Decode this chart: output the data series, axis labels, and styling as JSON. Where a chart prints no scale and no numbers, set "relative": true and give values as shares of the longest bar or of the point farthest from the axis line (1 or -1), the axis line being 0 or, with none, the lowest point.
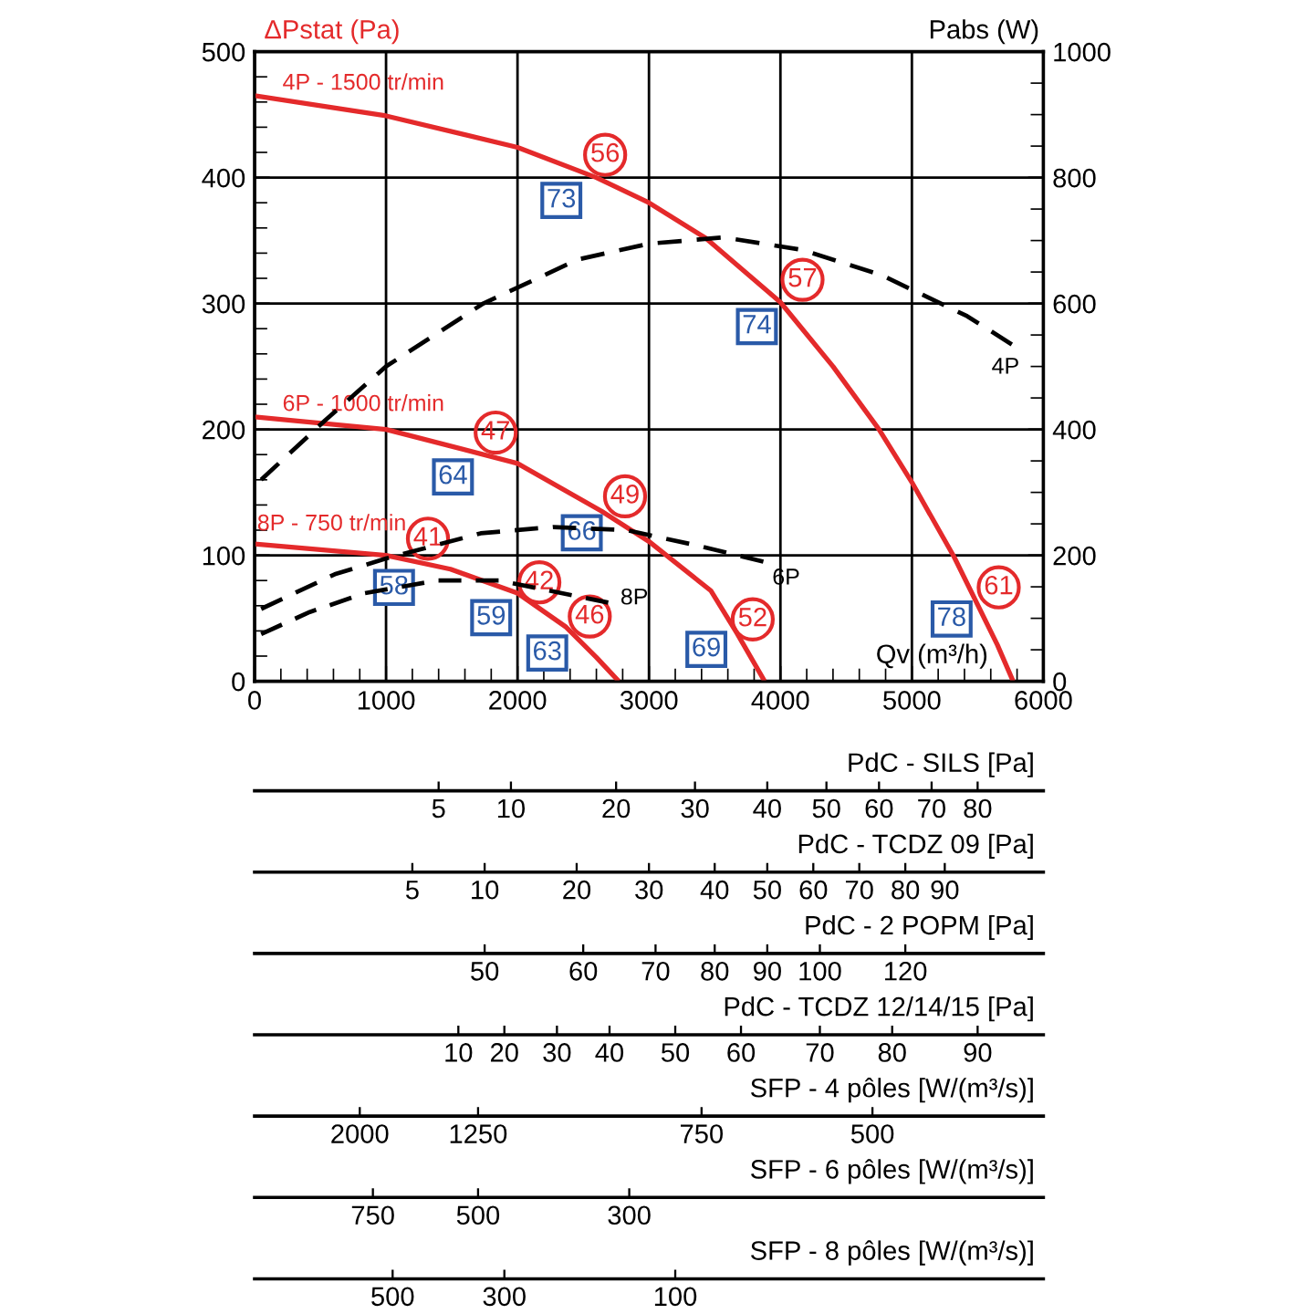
{
  "chart_data": [
    {
      "type": "line",
      "xlabel": "Qv (m³/h)",
      "ylabel": "ΔPstat (Pa)",
      "y2label": "Pabs (W)",
      "xlim": [
        0,
        6000
      ],
      "xticks": [
        0,
        {
          "value": 200,
          "label": null
        },
        {
          "value": 400,
          "label": null
        },
        {
          "value": 600,
          "label": null
        },
        {
          "value": 800,
          "label": null
        },
        1000,
        {
          "value": 1200,
          "label": null
        },
        {
          "value": 1400,
          "label": null
        },
        {
          "value": 1600,
          "label": null
        },
        {
          "value": 1800,
          "label": null
        },
        2000,
        {
          "value": 2200,
          "label": null
        },
        {
          "value": 2400,
          "label": null
        },
        {
          "value": 2600,
          "label": null
        },
        {
          "value": 2800,
          "label": null
        },
        3000,
        {
          "value": 3200,
          "label": null
        },
        {
          "value": 3400,
          "label": null
        },
        {
          "value": 3600,
          "label": null
        },
        {
          "value": 3800,
          "label": null
        },
        4000,
        {
          "value": 4200,
          "label": null
        },
        {
          "value": 4400,
          "label": null
        },
        {
          "value": 4600,
          "label": null
        },
        {
          "value": 4800,
          "label": null
        },
        5000,
        {
          "value": 5200,
          "label": null
        },
        {
          "value": 5400,
          "label": null
        },
        {
          "value": 5600,
          "label": null
        },
        {
          "value": 5800,
          "label": null
        },
        6000
      ],
      "ylim": [
        0,
        500
      ],
      "yticks": [
        0,
        {
          "value": 20,
          "label": null
        },
        {
          "value": 40,
          "label": null
        },
        {
          "value": 60,
          "label": null
        },
        {
          "value": 80,
          "label": null
        },
        100,
        {
          "value": 120,
          "label": null
        },
        {
          "value": 140,
          "label": null
        },
        {
          "value": 160,
          "label": null
        },
        {
          "value": 180,
          "label": null
        },
        200,
        {
          "value": 220,
          "label": null
        },
        {
          "value": 240,
          "label": null
        },
        {
          "value": 260,
          "label": null
        },
        {
          "value": 280,
          "label": null
        },
        300,
        {
          "value": 320,
          "label": null
        },
        {
          "value": 340,
          "label": null
        },
        {
          "value": 360,
          "label": null
        },
        {
          "value": 380,
          "label": null
        },
        400,
        {
          "value": 420,
          "label": null
        },
        {
          "value": 440,
          "label": null
        },
        {
          "value": 460,
          "label": null
        },
        {
          "value": 480,
          "label": null
        },
        500
      ],
      "y2lim": [
        0,
        1000
      ],
      "y2ticks": [
        0,
        {
          "value": 50,
          "label": null
        },
        {
          "value": 100,
          "label": null
        },
        {
          "value": 150,
          "label": null
        },
        200,
        {
          "value": 250,
          "label": null
        },
        {
          "value": 300,
          "label": null
        },
        {
          "value": 350,
          "label": null
        },
        400,
        {
          "value": 450,
          "label": null
        },
        {
          "value": 500,
          "label": null
        },
        {
          "value": 550,
          "label": null
        },
        600,
        {
          "value": 650,
          "label": null
        },
        {
          "value": 700,
          "label": null
        },
        {
          "value": 750,
          "label": null
        },
        800,
        {
          "value": 850,
          "label": null
        },
        {
          "value": 900,
          "label": null
        },
        {
          "value": 950,
          "label": null
        },
        1000
      ],
      "grid": true,
      "series": [
        {
          "name": "4P - 1500 tr/min",
          "color": "#e42a2b",
          "line_style": "solid",
          "x": [
            0,
            1000,
            2000,
            2600,
            3000,
            3430,
            4000,
            4400,
            4750,
            5000,
            5320,
            5650,
            5770
          ],
          "values": [
            465,
            449,
            424,
            400,
            380,
            352,
            301,
            250,
            200,
            158,
            99,
            29,
            0
          ]
        },
        {
          "name": "6P - 1000 tr/min",
          "color": "#e42a2b",
          "line_style": "solid",
          "x": [
            0,
            1000,
            2000,
            2640,
            3000,
            3470,
            3670,
            3880
          ],
          "values": [
            210,
            200,
            173,
            135,
            111,
            72,
            38,
            0
          ]
        },
        {
          "name": "8P - 750 tr/min",
          "color": "#e42a2b",
          "line_style": "solid",
          "x": [
            0,
            1000,
            1490,
            2000,
            2370,
            2600,
            2770
          ],
          "values": [
            109,
            100,
            89,
            70,
            43,
            19,
            0
          ]
        },
        {
          "name": "4P",
          "color": "#000000",
          "line_style": "dashed",
          "axis": "y2",
          "x": [
            50,
            540,
            1000,
            1740,
            2460,
            3000,
            3570,
            4170,
            4770,
            5420,
            5760
          ],
          "values": [
            320,
            415,
            500,
            600,
            670,
            695,
            705,
            685,
            645,
            580,
            535
          ]
        },
        {
          "name": "6P",
          "color": "#000000",
          "line_style": "dashed",
          "axis": "y2",
          "x": [
            50,
            610,
            1000,
            1720,
            2270,
            2830,
            3380,
            3870
          ],
          "values": [
            115,
            170,
            195,
            235,
            245,
            240,
            215,
            190
          ]
        },
        {
          "name": "8P",
          "color": "#000000",
          "line_style": "dashed",
          "axis": "y2",
          "x": [
            50,
            420,
            840,
            1390,
            1860,
            2690
          ],
          "values": [
            75,
            110,
            140,
            160,
            160,
            125
          ]
        }
      ],
      "annotations": [
        {
          "text": "56",
          "x": 2500,
          "y": 404
        },
        {
          "text": "73",
          "x": 2500,
          "y": 404
        },
        {
          "text": "57",
          "x": 4000,
          "y": 301
        },
        {
          "text": "74",
          "x": 4000,
          "y": 301
        },
        {
          "text": "61",
          "x": 5480,
          "y": 65
        },
        {
          "text": "78",
          "x": 5480,
          "y": 65
        },
        {
          "text": "47",
          "x": 1670,
          "y": 182
        },
        {
          "text": "64",
          "x": 1670,
          "y": 182
        },
        {
          "text": "49",
          "x": 2650,
          "y": 134
        },
        {
          "text": "66",
          "x": 2650,
          "y": 134
        },
        {
          "text": "52",
          "x": 3610,
          "y": 48
        },
        {
          "text": "69",
          "x": 3610,
          "y": 48
        },
        {
          "text": "41",
          "x": 1180,
          "y": 96
        },
        {
          "text": "58",
          "x": 1180,
          "y": 96
        },
        {
          "text": "42",
          "x": 1980,
          "y": 71
        },
        {
          "text": "59",
          "x": 1980,
          "y": 71
        },
        {
          "text": "46",
          "x": 2390,
          "y": 41
        },
        {
          "text": "63",
          "x": 2390,
          "y": 41
        }
      ]
    },
    {
      "type": "bar",
      "relative": true,
      "color": "#000000",
      "xlabel": "PdC - SILS [Pa]",
      "categories": [
        null,
        null,
        null,
        null,
        null,
        null,
        null,
        null,
        null,
        null,
        null,
        null,
        null,
        null,
        null,
        null,
        null,
        null,
        null,
        null,
        null,
        null,
        null,
        null,
        null,
        null,
        null,
        null,
        "5",
        null,
        null,
        null,
        null,
        null,
        null,
        null,
        null,
        null,
        null,
        "10",
        null,
        null,
        null,
        null,
        null,
        null,
        null,
        null,
        null,
        null,
        null,
        null,
        null,
        null,
        null,
        "20",
        null,
        null,
        null,
        null,
        null,
        null,
        null,
        null,
        null,
        null,
        null,
        "30",
        null,
        null,
        null,
        null,
        null,
        null,
        null,
        null,
        null,
        null,
        "40",
        null,
        null,
        null,
        null,
        null,
        null,
        null,
        null,
        "50",
        null,
        null,
        null,
        null,
        null,
        null,
        null,
        "60",
        null,
        null,
        null,
        null,
        null,
        null,
        null,
        "70",
        null,
        null,
        null,
        null,
        null,
        null,
        "80",
        null,
        null,
        null,
        null,
        null,
        null,
        null,
        null,
        null,
        null
      ],
      "values": [
        null,
        null,
        null,
        null,
        null,
        null,
        null,
        null,
        null,
        null,
        null,
        null,
        null,
        null,
        null,
        null,
        null,
        null,
        null,
        null,
        null,
        null,
        null,
        null,
        null,
        null,
        null,
        null,
        1,
        null,
        null,
        null,
        null,
        null,
        null,
        null,
        null,
        null,
        null,
        1,
        null,
        null,
        null,
        null,
        null,
        null,
        null,
        null,
        null,
        null,
        null,
        null,
        null,
        null,
        null,
        1,
        null,
        null,
        null,
        null,
        null,
        null,
        null,
        null,
        null,
        null,
        null,
        1,
        null,
        null,
        null,
        null,
        null,
        null,
        null,
        null,
        null,
        null,
        1,
        null,
        null,
        null,
        null,
        null,
        null,
        null,
        null,
        1,
        null,
        null,
        null,
        null,
        null,
        null,
        null,
        1,
        null,
        null,
        null,
        null,
        null,
        null,
        null,
        1,
        null,
        null,
        null,
        null,
        null,
        null,
        1,
        null,
        null,
        null,
        null,
        null,
        null,
        null,
        null,
        null,
        null
      ]
    },
    {
      "type": "bar",
      "relative": true,
      "color": "#000000",
      "xlabel": "PdC - TCDZ 09 [Pa]",
      "categories": [
        null,
        null,
        null,
        null,
        null,
        null,
        null,
        null,
        null,
        null,
        null,
        null,
        null,
        null,
        null,
        null,
        null,
        null,
        null,
        null,
        null,
        null,
        null,
        null,
        "5",
        null,
        null,
        null,
        null,
        null,
        null,
        null,
        null,
        null,
        null,
        "10",
        null,
        null,
        null,
        null,
        null,
        null,
        null,
        null,
        null,
        null,
        null,
        null,
        null,
        "20",
        null,
        null,
        null,
        null,
        null,
        null,
        null,
        null,
        null,
        null,
        "30",
        null,
        null,
        null,
        null,
        null,
        null,
        null,
        null,
        null,
        "40",
        null,
        null,
        null,
        null,
        null,
        null,
        null,
        "50",
        null,
        null,
        null,
        null,
        null,
        null,
        "60",
        null,
        null,
        null,
        null,
        null,
        null,
        "70",
        null,
        null,
        null,
        null,
        null,
        null,
        "80",
        null,
        null,
        null,
        null,
        null,
        "90",
        null,
        null,
        null,
        null,
        null,
        null,
        null,
        null,
        null,
        null,
        null,
        null,
        null,
        null,
        null
      ],
      "values": [
        null,
        null,
        null,
        null,
        null,
        null,
        null,
        null,
        null,
        null,
        null,
        null,
        null,
        null,
        null,
        null,
        null,
        null,
        null,
        null,
        null,
        null,
        null,
        null,
        1,
        null,
        null,
        null,
        null,
        null,
        null,
        null,
        null,
        null,
        null,
        1,
        null,
        null,
        null,
        null,
        null,
        null,
        null,
        null,
        null,
        null,
        null,
        null,
        null,
        1,
        null,
        null,
        null,
        null,
        null,
        null,
        null,
        null,
        null,
        null,
        1,
        null,
        null,
        null,
        null,
        null,
        null,
        null,
        null,
        null,
        1,
        null,
        null,
        null,
        null,
        null,
        null,
        null,
        1,
        null,
        null,
        null,
        null,
        null,
        null,
        1,
        null,
        null,
        null,
        null,
        null,
        null,
        1,
        null,
        null,
        null,
        null,
        null,
        null,
        1,
        null,
        null,
        null,
        null,
        null,
        1,
        null,
        null,
        null,
        null,
        null,
        null,
        null,
        null,
        null,
        null,
        null,
        null,
        null,
        null,
        null
      ]
    },
    {
      "type": "bar",
      "relative": true,
      "color": "#000000",
      "xlabel": "PdC - 2 POPM [Pa]",
      "categories": [
        null,
        null,
        null,
        null,
        null,
        null,
        null,
        null,
        null,
        null,
        null,
        null,
        null,
        null,
        null,
        null,
        null,
        null,
        null,
        null,
        null,
        null,
        null,
        null,
        null,
        null,
        null,
        null,
        null,
        null,
        null,
        null,
        null,
        null,
        null,
        "50",
        null,
        null,
        null,
        null,
        null,
        null,
        null,
        null,
        null,
        null,
        null,
        null,
        null,
        null,
        "60",
        null,
        null,
        null,
        null,
        null,
        null,
        null,
        null,
        null,
        null,
        "70",
        null,
        null,
        null,
        null,
        null,
        null,
        null,
        null,
        "80",
        null,
        null,
        null,
        null,
        null,
        null,
        null,
        "90",
        null,
        null,
        null,
        null,
        null,
        null,
        null,
        "100",
        null,
        null,
        null,
        null,
        null,
        null,
        null,
        null,
        null,
        null,
        null,
        null,
        "120",
        null,
        null,
        null,
        null,
        null,
        null,
        null,
        null,
        null,
        null,
        null,
        null,
        null,
        null,
        null,
        null,
        null,
        null,
        null,
        null,
        null
      ],
      "values": [
        null,
        null,
        null,
        null,
        null,
        null,
        null,
        null,
        null,
        null,
        null,
        null,
        null,
        null,
        null,
        null,
        null,
        null,
        null,
        null,
        null,
        null,
        null,
        null,
        null,
        null,
        null,
        null,
        null,
        null,
        null,
        null,
        null,
        null,
        null,
        1,
        null,
        null,
        null,
        null,
        null,
        null,
        null,
        null,
        null,
        null,
        null,
        null,
        null,
        null,
        1,
        null,
        null,
        null,
        null,
        null,
        null,
        null,
        null,
        null,
        null,
        1,
        null,
        null,
        null,
        null,
        null,
        null,
        null,
        null,
        1,
        null,
        null,
        null,
        null,
        null,
        null,
        null,
        1,
        null,
        null,
        null,
        null,
        null,
        null,
        null,
        1,
        null,
        null,
        null,
        null,
        null,
        null,
        null,
        null,
        null,
        null,
        null,
        null,
        1,
        null,
        null,
        null,
        null,
        null,
        null,
        null,
        null,
        null,
        null,
        null,
        null,
        null,
        null,
        null,
        null,
        null,
        null,
        null,
        null,
        null
      ]
    },
    {
      "type": "bar",
      "relative": true,
      "color": "#000000",
      "xlabel": "PdC - TCDZ 12/14/15 [Pa]",
      "categories": [
        null,
        null,
        null,
        null,
        null,
        null,
        null,
        null,
        null,
        null,
        null,
        null,
        null,
        null,
        null,
        null,
        null,
        null,
        null,
        null,
        null,
        null,
        null,
        null,
        null,
        null,
        null,
        null,
        null,
        null,
        null,
        "10",
        null,
        null,
        null,
        null,
        null,
        null,
        "20",
        null,
        null,
        null,
        null,
        null,
        null,
        null,
        "30",
        null,
        null,
        null,
        null,
        null,
        null,
        null,
        "40",
        null,
        null,
        null,
        null,
        null,
        null,
        null,
        null,
        null,
        "50",
        null,
        null,
        null,
        null,
        null,
        null,
        null,
        null,
        null,
        "60",
        null,
        null,
        null,
        null,
        null,
        null,
        null,
        null,
        null,
        null,
        null,
        "70",
        null,
        null,
        null,
        null,
        null,
        null,
        null,
        null,
        null,
        null,
        "80",
        null,
        null,
        null,
        null,
        null,
        null,
        null,
        null,
        null,
        null,
        null,
        null,
        "90",
        null,
        null,
        null,
        null,
        null,
        null,
        null,
        null,
        null,
        null
      ],
      "values": [
        null,
        null,
        null,
        null,
        null,
        null,
        null,
        null,
        null,
        null,
        null,
        null,
        null,
        null,
        null,
        null,
        null,
        null,
        null,
        null,
        null,
        null,
        null,
        null,
        null,
        null,
        null,
        null,
        null,
        null,
        null,
        1,
        null,
        null,
        null,
        null,
        null,
        null,
        1,
        null,
        null,
        null,
        null,
        null,
        null,
        null,
        1,
        null,
        null,
        null,
        null,
        null,
        null,
        null,
        1,
        null,
        null,
        null,
        null,
        null,
        null,
        null,
        null,
        null,
        1,
        null,
        null,
        null,
        null,
        null,
        null,
        null,
        null,
        null,
        1,
        null,
        null,
        null,
        null,
        null,
        null,
        null,
        null,
        null,
        null,
        null,
        1,
        null,
        null,
        null,
        null,
        null,
        null,
        null,
        null,
        null,
        null,
        1,
        null,
        null,
        null,
        null,
        null,
        null,
        null,
        null,
        null,
        null,
        null,
        null,
        1,
        null,
        null,
        null,
        null,
        null,
        null,
        null,
        null,
        null,
        null
      ]
    },
    {
      "type": "bar",
      "relative": true,
      "color": "#000000",
      "xlabel": "SFP - 4 pôles [W/(m³/s)]",
      "categories": [
        null,
        null,
        null,
        null,
        null,
        null,
        null,
        null,
        null,
        null,
        null,
        null,
        null,
        null,
        null,
        null,
        "2000",
        null,
        null,
        null,
        null,
        null,
        null,
        null,
        null,
        null,
        null,
        null,
        null,
        null,
        null,
        null,
        null,
        null,
        "1250",
        null,
        null,
        null,
        null,
        null,
        null,
        null,
        null,
        null,
        null,
        null,
        null,
        null,
        null,
        null,
        null,
        null,
        null,
        null,
        null,
        null,
        null,
        null,
        null,
        null,
        null,
        null,
        null,
        null,
        null,
        null,
        null,
        null,
        "750",
        null,
        null,
        null,
        null,
        null,
        null,
        null,
        null,
        null,
        null,
        null,
        null,
        null,
        null,
        null,
        null,
        null,
        null,
        null,
        null,
        null,
        null,
        null,
        null,
        null,
        "500",
        null,
        null,
        null,
        null,
        null,
        null,
        null,
        null,
        null,
        null,
        null,
        null,
        null,
        null,
        null,
        null,
        null,
        null,
        null,
        null,
        null,
        null,
        null,
        null,
        null,
        null
      ],
      "values": [
        null,
        null,
        null,
        null,
        null,
        null,
        null,
        null,
        null,
        null,
        null,
        null,
        null,
        null,
        null,
        null,
        1,
        null,
        null,
        null,
        null,
        null,
        null,
        null,
        null,
        null,
        null,
        null,
        null,
        null,
        null,
        null,
        null,
        null,
        1,
        null,
        null,
        null,
        null,
        null,
        null,
        null,
        null,
        null,
        null,
        null,
        null,
        null,
        null,
        null,
        null,
        null,
        null,
        null,
        null,
        null,
        null,
        null,
        null,
        null,
        null,
        null,
        null,
        null,
        null,
        null,
        null,
        null,
        1,
        null,
        null,
        null,
        null,
        null,
        null,
        null,
        null,
        null,
        null,
        null,
        null,
        null,
        null,
        null,
        null,
        null,
        null,
        null,
        null,
        null,
        null,
        null,
        null,
        null,
        1,
        null,
        null,
        null,
        null,
        null,
        null,
        null,
        null,
        null,
        null,
        null,
        null,
        null,
        null,
        null,
        null,
        null,
        null,
        null,
        null,
        null,
        null,
        null,
        null,
        null,
        null
      ]
    },
    {
      "type": "bar",
      "relative": true,
      "color": "#000000",
      "xlabel": "SFP - 6 pôles [W/(m³/s)]",
      "categories": [
        null,
        null,
        null,
        null,
        null,
        null,
        null,
        null,
        null,
        null,
        null,
        null,
        null,
        null,
        null,
        null,
        null,
        null,
        "750",
        null,
        null,
        null,
        null,
        null,
        null,
        null,
        null,
        null,
        null,
        null,
        null,
        null,
        null,
        null,
        "500",
        null,
        null,
        null,
        null,
        null,
        null,
        null,
        null,
        null,
        null,
        null,
        null,
        null,
        null,
        null,
        null,
        null,
        null,
        null,
        null,
        null,
        null,
        "300",
        null,
        null,
        null,
        null,
        null,
        null,
        null,
        null,
        null,
        null,
        null,
        null,
        null,
        null,
        null,
        null,
        null,
        null,
        null,
        null,
        null,
        null,
        null,
        null,
        null,
        null,
        null,
        null,
        null,
        null,
        null,
        null,
        null,
        null,
        null,
        null,
        null,
        null,
        null,
        null,
        null,
        null,
        null,
        null,
        null,
        null,
        null,
        null,
        null,
        null,
        null,
        null,
        null,
        null,
        null,
        null,
        null,
        null,
        null,
        null,
        null,
        null,
        null
      ],
      "values": [
        null,
        null,
        null,
        null,
        null,
        null,
        null,
        null,
        null,
        null,
        null,
        null,
        null,
        null,
        null,
        null,
        null,
        null,
        1,
        null,
        null,
        null,
        null,
        null,
        null,
        null,
        null,
        null,
        null,
        null,
        null,
        null,
        null,
        null,
        1,
        null,
        null,
        null,
        null,
        null,
        null,
        null,
        null,
        null,
        null,
        null,
        null,
        null,
        null,
        null,
        null,
        null,
        null,
        null,
        null,
        null,
        null,
        1,
        null,
        null,
        null,
        null,
        null,
        null,
        null,
        null,
        null,
        null,
        null,
        null,
        null,
        null,
        null,
        null,
        null,
        null,
        null,
        null,
        null,
        null,
        null,
        null,
        null,
        null,
        null,
        null,
        null,
        null,
        null,
        null,
        null,
        null,
        null,
        null,
        null,
        null,
        null,
        null,
        null,
        null,
        null,
        null,
        null,
        null,
        null,
        null,
        null,
        null,
        null,
        null,
        null,
        null,
        null,
        null,
        null,
        null,
        null,
        null,
        null,
        null,
        null
      ]
    },
    {
      "type": "bar",
      "relative": true,
      "color": "#000000",
      "xlabel": "SFP - 8 pôles [W/(m³/s)]",
      "categories": [
        null,
        null,
        null,
        null,
        null,
        null,
        null,
        null,
        null,
        null,
        null,
        null,
        null,
        null,
        null,
        null,
        null,
        null,
        null,
        null,
        null,
        "500",
        null,
        null,
        null,
        null,
        null,
        null,
        null,
        null,
        null,
        null,
        null,
        null,
        null,
        null,
        null,
        null,
        "300",
        null,
        null,
        null,
        null,
        null,
        null,
        null,
        null,
        null,
        null,
        null,
        null,
        null,
        null,
        null,
        null,
        null,
        null,
        null,
        null,
        null,
        null,
        null,
        null,
        null,
        "100",
        null,
        null,
        null,
        null,
        null,
        null,
        null,
        null,
        null,
        null,
        null,
        null,
        null,
        null,
        null,
        null,
        null,
        null,
        null,
        null,
        null,
        null,
        null,
        null,
        null,
        null,
        null,
        null,
        null,
        null,
        null,
        null,
        null,
        null,
        null,
        null,
        null,
        null,
        null,
        null,
        null,
        null,
        null,
        null,
        null,
        null,
        null,
        null,
        null,
        null,
        null,
        null,
        null,
        null,
        null,
        null
      ],
      "values": [
        null,
        null,
        null,
        null,
        null,
        null,
        null,
        null,
        null,
        null,
        null,
        null,
        null,
        null,
        null,
        null,
        null,
        null,
        null,
        null,
        null,
        1,
        null,
        null,
        null,
        null,
        null,
        null,
        null,
        null,
        null,
        null,
        null,
        null,
        null,
        null,
        null,
        null,
        1,
        null,
        null,
        null,
        null,
        null,
        null,
        null,
        null,
        null,
        null,
        null,
        null,
        null,
        null,
        null,
        null,
        null,
        null,
        null,
        null,
        null,
        null,
        null,
        null,
        null,
        1,
        null,
        null,
        null,
        null,
        null,
        null,
        null,
        null,
        null,
        null,
        null,
        null,
        null,
        null,
        null,
        null,
        null,
        null,
        null,
        null,
        null,
        null,
        null,
        null,
        null,
        null,
        null,
        null,
        null,
        null,
        null,
        null,
        null,
        null,
        null,
        null,
        null,
        null,
        null,
        null,
        null,
        null,
        null,
        null,
        null,
        null,
        null,
        null,
        null,
        null,
        null,
        null,
        null,
        null,
        null,
        null
      ]
    }
  ]
}
